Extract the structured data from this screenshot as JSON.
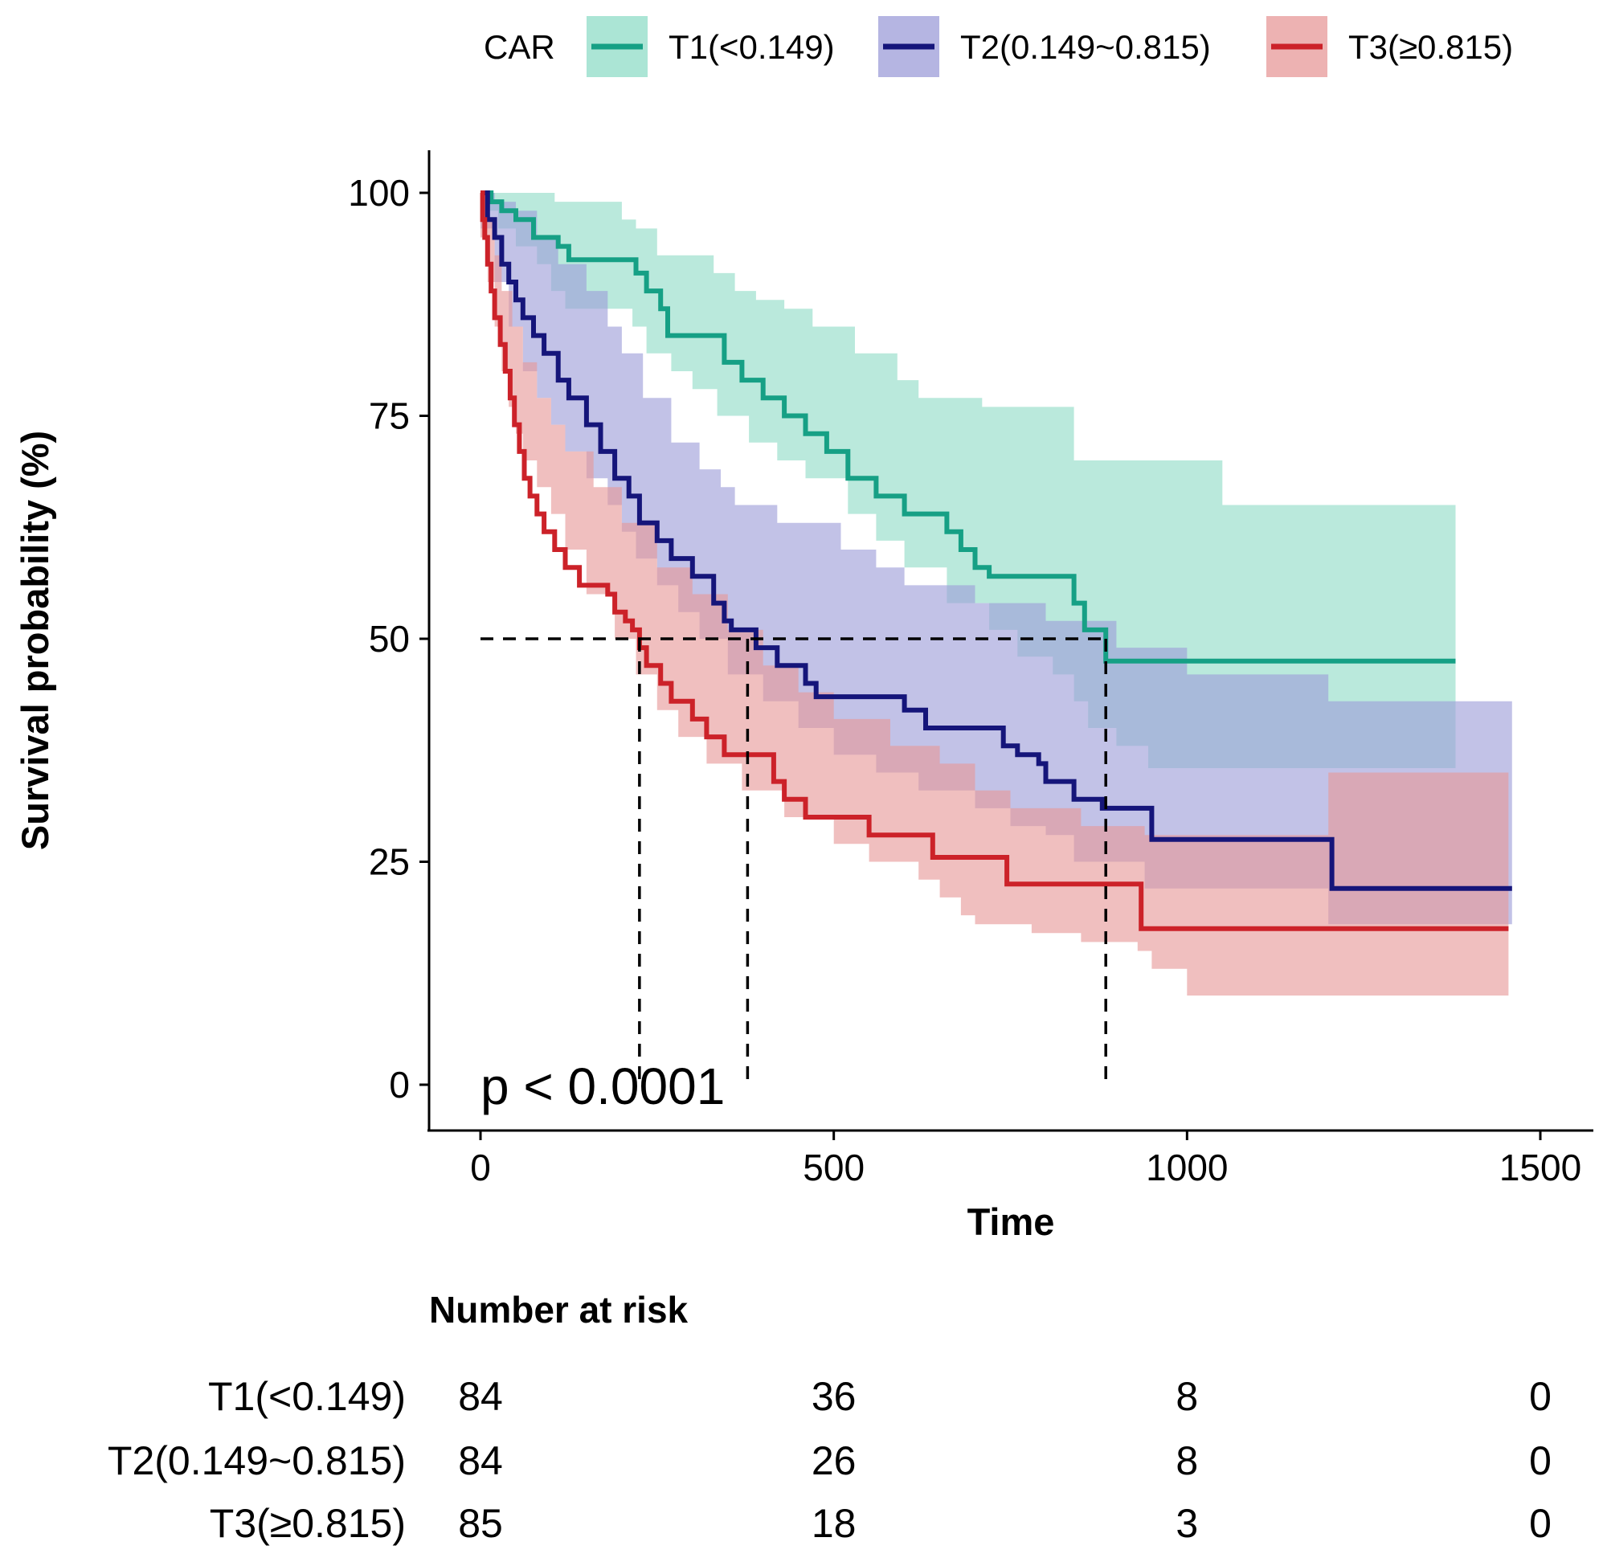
{
  "colors": {
    "t1": "#16A085",
    "t1_band": "#8FDCC7",
    "t2": "#15157A",
    "t2_band": "#9C9CD8",
    "t3": "#CC2229",
    "t3_band": "#E79898",
    "axis": "#000000",
    "median_line": "#000000"
  },
  "chart_data": {
    "type": "line",
    "subtype": "kaplan-meier",
    "title": "",
    "xlabel": "Time",
    "ylabel": "Survival probability (%)",
    "xlim": [
      -150,
      1570
    ],
    "ylim": [
      -5,
      105
    ],
    "x_ticks": [
      0,
      500,
      1000,
      1500
    ],
    "y_ticks": [
      0,
      25,
      50,
      75,
      100
    ],
    "legend": {
      "title": "CAR",
      "position": "top"
    },
    "p_value_label": "p < 0.0001",
    "median_survival": {
      "y": 50,
      "x_end": 885,
      "drops": [
        {
          "series": "T3(≥0.815)",
          "x": 225
        },
        {
          "series": "T2(0.149~0.815)",
          "x": 378
        },
        {
          "series": "T1(<0.149)",
          "x": 885
        }
      ]
    },
    "series": [
      {
        "name": "T1(<0.149)",
        "key": "t1",
        "steps": [
          [
            0,
            100
          ],
          [
            15,
            99
          ],
          [
            30,
            98
          ],
          [
            50,
            97
          ],
          [
            75,
            95
          ],
          [
            110,
            94
          ],
          [
            125,
            92.5
          ],
          [
            220,
            91
          ],
          [
            235,
            89
          ],
          [
            255,
            87
          ],
          [
            265,
            84
          ],
          [
            315,
            84
          ],
          [
            345,
            81
          ],
          [
            370,
            79
          ],
          [
            400,
            77
          ],
          [
            430,
            75
          ],
          [
            460,
            73
          ],
          [
            490,
            71
          ],
          [
            520,
            68
          ],
          [
            560,
            66
          ],
          [
            600,
            64
          ],
          [
            660,
            62
          ],
          [
            680,
            60
          ],
          [
            700,
            58
          ],
          [
            720,
            57
          ],
          [
            730,
            57
          ],
          [
            840,
            54
          ],
          [
            855,
            51
          ],
          [
            885,
            47.5
          ],
          [
            1380,
            47.5
          ]
        ],
        "upper": [
          [
            0,
            100
          ],
          [
            30,
            100
          ],
          [
            105,
            99
          ],
          [
            200,
            97
          ],
          [
            220,
            96
          ],
          [
            250,
            93
          ],
          [
            330,
            91
          ],
          [
            360,
            89
          ],
          [
            390,
            88
          ],
          [
            430,
            87
          ],
          [
            470,
            85
          ],
          [
            530,
            82
          ],
          [
            590,
            79
          ],
          [
            620,
            77
          ],
          [
            710,
            76
          ],
          [
            840,
            70
          ],
          [
            1050,
            65
          ],
          [
            1380,
            65
          ]
        ],
        "lower": [
          [
            0,
            98
          ],
          [
            25,
            96
          ],
          [
            50,
            94
          ],
          [
            80,
            92
          ],
          [
            100,
            89
          ],
          [
            120,
            87
          ],
          [
            215,
            85
          ],
          [
            235,
            82
          ],
          [
            270,
            80
          ],
          [
            300,
            78
          ],
          [
            335,
            75
          ],
          [
            380,
            72
          ],
          [
            420,
            70
          ],
          [
            460,
            68
          ],
          [
            520,
            64
          ],
          [
            560,
            61
          ],
          [
            600,
            58
          ],
          [
            660,
            54
          ],
          [
            720,
            51
          ],
          [
            760,
            48
          ],
          [
            810,
            46
          ],
          [
            840,
            43
          ],
          [
            860,
            40
          ],
          [
            900,
            38
          ],
          [
            945,
            35.5
          ],
          [
            1380,
            35.5
          ]
        ]
      },
      {
        "name": "T2(0.149~0.815)",
        "key": "t2",
        "steps": [
          [
            0,
            100
          ],
          [
            10,
            97
          ],
          [
            20,
            95
          ],
          [
            30,
            92
          ],
          [
            40,
            90
          ],
          [
            50,
            88
          ],
          [
            60,
            86
          ],
          [
            75,
            84
          ],
          [
            90,
            82
          ],
          [
            110,
            79
          ],
          [
            125,
            77
          ],
          [
            150,
            74
          ],
          [
            170,
            71
          ],
          [
            190,
            68
          ],
          [
            210,
            66
          ],
          [
            225,
            63
          ],
          [
            250,
            61
          ],
          [
            270,
            59
          ],
          [
            300,
            57
          ],
          [
            330,
            54
          ],
          [
            345,
            52
          ],
          [
            355,
            51
          ],
          [
            375,
            51
          ],
          [
            390,
            49
          ],
          [
            420,
            47
          ],
          [
            460,
            45
          ],
          [
            475,
            43.5
          ],
          [
            580,
            43.5
          ],
          [
            600,
            42
          ],
          [
            630,
            40
          ],
          [
            730,
            40
          ],
          [
            740,
            38
          ],
          [
            760,
            37
          ],
          [
            790,
            36
          ],
          [
            800,
            34
          ],
          [
            840,
            32
          ],
          [
            880,
            31
          ],
          [
            940,
            31
          ],
          [
            950,
            27.5
          ],
          [
            1200,
            27.5
          ],
          [
            1205,
            22
          ],
          [
            1460,
            22
          ]
        ],
        "upper": [
          [
            0,
            100
          ],
          [
            20,
            99
          ],
          [
            50,
            98
          ],
          [
            80,
            95
          ],
          [
            110,
            92
          ],
          [
            150,
            89
          ],
          [
            180,
            85
          ],
          [
            200,
            82
          ],
          [
            230,
            77
          ],
          [
            270,
            72
          ],
          [
            310,
            69
          ],
          [
            340,
            67
          ],
          [
            360,
            65
          ],
          [
            420,
            63
          ],
          [
            510,
            60
          ],
          [
            560,
            58
          ],
          [
            600,
            56
          ],
          [
            700,
            54
          ],
          [
            800,
            52
          ],
          [
            900,
            49
          ],
          [
            1000,
            46
          ],
          [
            1200,
            43
          ],
          [
            1460,
            42
          ]
        ],
        "lower": [
          [
            0,
            96
          ],
          [
            20,
            90
          ],
          [
            40,
            85
          ],
          [
            60,
            80
          ],
          [
            80,
            77
          ],
          [
            100,
            74
          ],
          [
            120,
            71
          ],
          [
            150,
            68
          ],
          [
            180,
            65
          ],
          [
            200,
            62
          ],
          [
            220,
            59
          ],
          [
            250,
            56
          ],
          [
            280,
            53
          ],
          [
            310,
            50
          ],
          [
            350,
            46
          ],
          [
            400,
            43
          ],
          [
            450,
            40
          ],
          [
            500,
            37
          ],
          [
            560,
            35
          ],
          [
            620,
            33
          ],
          [
            700,
            31
          ],
          [
            750,
            29
          ],
          [
            800,
            28
          ],
          [
            840,
            25
          ],
          [
            940,
            22
          ],
          [
            1200,
            18
          ],
          [
            1460,
            12
          ]
        ]
      },
      {
        "name": "T3(≥0.815)",
        "key": "t3",
        "steps": [
          [
            0,
            100
          ],
          [
            3,
            97
          ],
          [
            6,
            95
          ],
          [
            10,
            92
          ],
          [
            15,
            89
          ],
          [
            20,
            86
          ],
          [
            28,
            83
          ],
          [
            35,
            80
          ],
          [
            42,
            77
          ],
          [
            48,
            74
          ],
          [
            55,
            71
          ],
          [
            62,
            68
          ],
          [
            70,
            66
          ],
          [
            80,
            64
          ],
          [
            90,
            62
          ],
          [
            105,
            60
          ],
          [
            120,
            58
          ],
          [
            140,
            56
          ],
          [
            180,
            55
          ],
          [
            190,
            53
          ],
          [
            205,
            52
          ],
          [
            215,
            51
          ],
          [
            225,
            49
          ],
          [
            235,
            47
          ],
          [
            255,
            45
          ],
          [
            270,
            43
          ],
          [
            300,
            41
          ],
          [
            320,
            39
          ],
          [
            345,
            37
          ],
          [
            395,
            37
          ],
          [
            415,
            34
          ],
          [
            430,
            32
          ],
          [
            460,
            30
          ],
          [
            545,
            30
          ],
          [
            550,
            28
          ],
          [
            625,
            28
          ],
          [
            640,
            25.5
          ],
          [
            720,
            25.5
          ],
          [
            745,
            22.5
          ],
          [
            930,
            22.5
          ],
          [
            935,
            17.5
          ],
          [
            1455,
            17.5
          ]
        ],
        "upper": [
          [
            0,
            100
          ],
          [
            10,
            97
          ],
          [
            20,
            93
          ],
          [
            30,
            89
          ],
          [
            45,
            85
          ],
          [
            60,
            81
          ],
          [
            80,
            77
          ],
          [
            100,
            74
          ],
          [
            120,
            71
          ],
          [
            160,
            67
          ],
          [
            200,
            63
          ],
          [
            250,
            58
          ],
          [
            300,
            55
          ],
          [
            350,
            51
          ],
          [
            400,
            47
          ],
          [
            450,
            44
          ],
          [
            500,
            41
          ],
          [
            580,
            38
          ],
          [
            650,
            36
          ],
          [
            700,
            33
          ],
          [
            750,
            31
          ],
          [
            850,
            29
          ],
          [
            940,
            28
          ],
          [
            1200,
            35
          ],
          [
            1455,
            35
          ]
        ],
        "lower": [
          [
            0,
            95
          ],
          [
            10,
            90
          ],
          [
            20,
            85
          ],
          [
            30,
            80
          ],
          [
            40,
            76
          ],
          [
            50,
            73
          ],
          [
            60,
            70
          ],
          [
            80,
            67
          ],
          [
            100,
            64
          ],
          [
            120,
            60
          ],
          [
            150,
            55
          ],
          [
            190,
            50
          ],
          [
            220,
            46
          ],
          [
            250,
            42
          ],
          [
            280,
            39
          ],
          [
            320,
            36
          ],
          [
            370,
            33
          ],
          [
            430,
            30
          ],
          [
            500,
            27
          ],
          [
            550,
            25
          ],
          [
            620,
            23
          ],
          [
            650,
            21
          ],
          [
            680,
            19
          ],
          [
            700,
            18
          ],
          [
            780,
            17
          ],
          [
            850,
            16
          ],
          [
            930,
            15
          ],
          [
            950,
            13
          ],
          [
            1000,
            10
          ],
          [
            1455,
            10
          ]
        ]
      }
    ]
  },
  "risk_table": {
    "title": "Number at risk",
    "time_points": [
      0,
      500,
      1000,
      1500
    ],
    "rows": [
      {
        "label": "T1(<0.149)",
        "values": [
          "84",
          "36",
          "8",
          "0"
        ]
      },
      {
        "label": "T2(0.149~0.815)",
        "values": [
          "84",
          "26",
          "8",
          "0"
        ]
      },
      {
        "label": "T3(≥0.815)",
        "values": [
          "85",
          "18",
          "3",
          "0"
        ]
      }
    ]
  }
}
